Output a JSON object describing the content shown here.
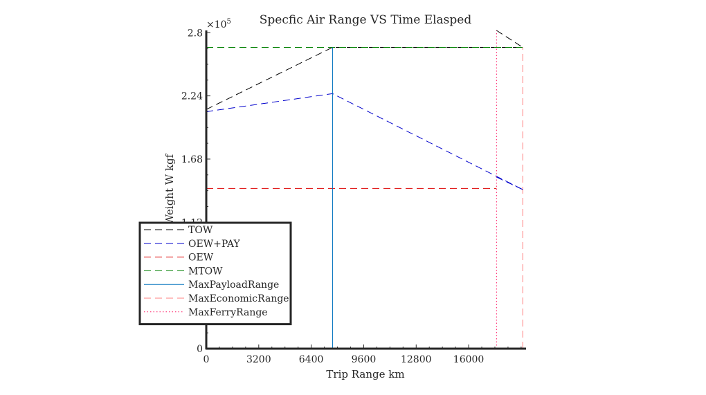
{
  "chart_data": {
    "type": "line",
    "title": "Specfic Air Range VS Time Elasped",
    "xlabel": "Trip Range km",
    "ylabel": "Weight  W kgf",
    "y_multiplier": "×10",
    "y_exponent": "5",
    "xlim": [
      0,
      19500
    ],
    "ylim": [
      0,
      282000
    ],
    "xticks": [
      0,
      3200,
      6400,
      9600,
      12800,
      16000
    ],
    "xtick_labels": [
      "0",
      "3200",
      "6400",
      "9600",
      "12800",
      "16000"
    ],
    "yticks": [
      0,
      112000,
      168000,
      224000,
      280000
    ],
    "ytick_labels": [
      "0",
      "1.12",
      "1.68",
      "2.24",
      "2.8"
    ],
    "grid": false,
    "legend_position": "middle-left",
    "series": [
      {
        "name": "TOW",
        "color": "#000000",
        "dash": "dashed",
        "x": [
          0,
          7700,
          17700,
          19300
        ],
        "y": [
          212000,
          267000,
          267000,
          267000
        ]
      },
      {
        "name": "OEW+PAY",
        "color": "#0000cc",
        "dash": "dashed",
        "x": [
          0,
          7700,
          19300
        ],
        "y": [
          210000,
          226000,
          141000
        ]
      },
      {
        "name": "OEW",
        "color": "#dd0000",
        "dash": "dashed",
        "x": [
          0,
          17700
        ],
        "y": [
          142000,
          142000
        ]
      },
      {
        "name": "MTOW",
        "color": "#008000",
        "dash": "dashed",
        "x": [
          0,
          19300
        ],
        "y": [
          267000,
          267000
        ]
      },
      {
        "name": "MaxPayloadRange",
        "color": "#0072bd",
        "dash": "solid",
        "x": [
          7700,
          7700
        ],
        "y": [
          0,
          267000
        ]
      },
      {
        "name": "MaxEconomicRange",
        "color": "#ff8080",
        "dash": "dashed",
        "x": [
          19300,
          19300
        ],
        "y": [
          0,
          267000
        ]
      },
      {
        "name": "MaxFerryRange",
        "color": "#ff1a66",
        "dash": "dotted",
        "x": [
          17700,
          17700
        ],
        "y": [
          0,
          282000
        ]
      }
    ],
    "extra_segments": [
      {
        "color": "#000000",
        "dash": "dashed",
        "x": [
          17700,
          19300
        ],
        "y": [
          282000,
          267000
        ]
      },
      {
        "color": "#0000cc",
        "dash": "dashed",
        "x": [
          17700,
          19300
        ],
        "y": [
          152000,
          141000
        ]
      }
    ]
  }
}
